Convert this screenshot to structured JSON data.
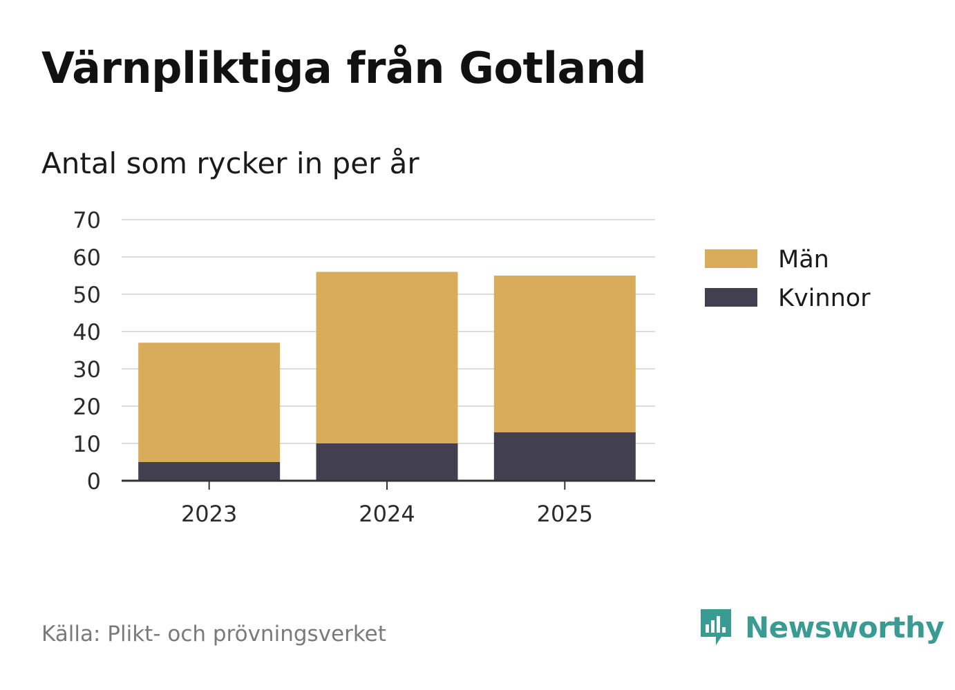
{
  "title": "Värnpliktiga från Gotland",
  "subtitle": "Antal som rycker in per år",
  "source": "Källa: Plikt- och prövningsverket",
  "brand": {
    "name": "Newsworthy",
    "icon": "newsworthy-logo-icon",
    "color": "#3a9b92"
  },
  "chart_data": {
    "type": "bar",
    "stacked": true,
    "categories": [
      "2023",
      "2024",
      "2025"
    ],
    "series": [
      {
        "name": "Kvinnor",
        "color": "#423f4e",
        "values": [
          5,
          10,
          13
        ]
      },
      {
        "name": "Män",
        "color": "#d9ac5b",
        "values": [
          32,
          46,
          42
        ]
      }
    ],
    "legend": [
      "Män",
      "Kvinnor"
    ],
    "legend_placement": "right",
    "yticks": [
      "0",
      "10",
      "20",
      "30",
      "40",
      "50",
      "60",
      "70"
    ],
    "ylim": [
      0,
      70
    ],
    "grid": true,
    "xlabel": "",
    "ylabel": ""
  }
}
